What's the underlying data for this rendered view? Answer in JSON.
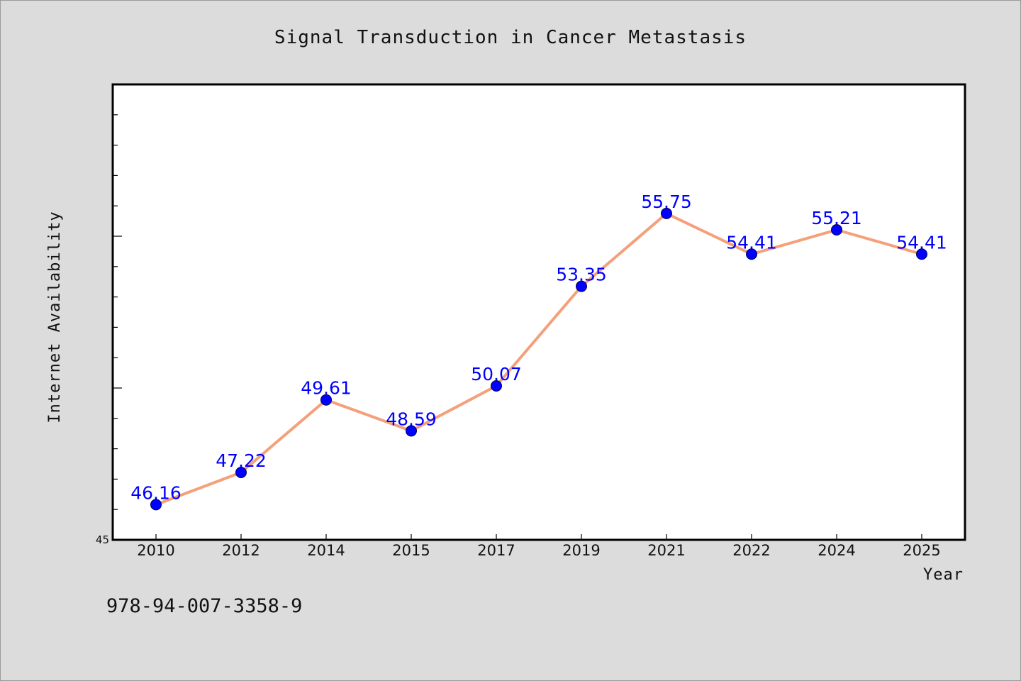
{
  "chart_data": {
    "type": "line",
    "title": "Signal Transduction in Cancer Metastasis",
    "xlabel": "Year",
    "ylabel": "Internet Availability",
    "categories": [
      "2010",
      "2012",
      "2014",
      "2015",
      "2017",
      "2019",
      "2021",
      "2022",
      "2024",
      "2025"
    ],
    "series": [
      {
        "values": [
          46.16,
          47.22,
          49.61,
          48.59,
          50.07,
          53.35,
          55.75,
          54.41,
          55.21,
          54.41
        ],
        "labels": [
          "46.16",
          "47.22",
          "49.61",
          "48.59",
          "50.07",
          "53.35",
          "55.75",
          "54.41",
          "55.21",
          "54.41"
        ]
      }
    ],
    "ylim": [
      45,
      60
    ],
    "y_tick_labels": [
      "45"
    ],
    "grid": false,
    "colors": {
      "line": "#f4a07a",
      "marker": "#0000ff",
      "label": "#0000ff",
      "background": "#dcdcdc",
      "plot_background": "#ffffff"
    }
  },
  "footer": {
    "code": "978-94-007-3358-9"
  }
}
